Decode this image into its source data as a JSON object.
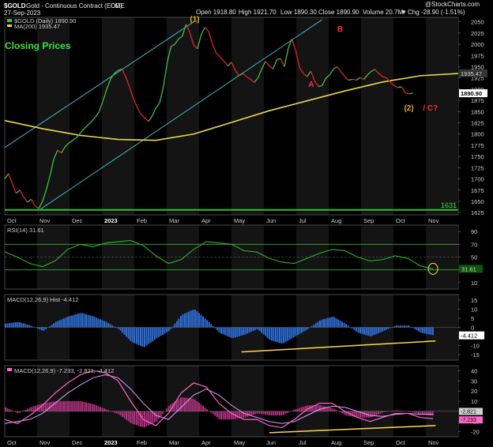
{
  "header": {
    "symbol": "$GOLD",
    "name": "Gold - Continuous Contract (EOD)",
    "exchange": "CME",
    "date": "27-Sep-2023",
    "quote": {
      "open": "Open 1918.80",
      "high": "High 1921.70",
      "low": "Low 1890.30",
      "close": "Close 1890.90",
      "volume": "Volume 20.7M",
      "change": "Chg -28.90 (-1.51%)",
      "change_arrow": "▼"
    },
    "watermark": "@StockCharts.com"
  },
  "colors": {
    "background": "#000000",
    "band": "#141414",
    "price_up": "#3ec23e",
    "price_down": "#e0261f",
    "ma200": "#e8d84a",
    "channel": "#3fb8c8",
    "support": "#29c429",
    "rsi": "#2db52d",
    "macd_hist": "#2d6fd6",
    "macd_line": "#ff66cc",
    "signal_line": "#d9a0ff",
    "annotation_yellow": "#ffd84a",
    "label_green": "#3be23b",
    "label_red": "#ff3030",
    "wave_gold": "#e0b020"
  },
  "chart_data": [
    {
      "type": "line",
      "panel": "price",
      "title": "Closing Prices",
      "legend": [
        "$GOLD (Daily) 1890.90",
        "MA(200) 1935.47"
      ],
      "x_ticks": [
        "Oct",
        "Nov",
        "Dec",
        "2023",
        "Feb",
        "Mar",
        "Apr",
        "May",
        "Jun",
        "Jul",
        "Aug",
        "Sep",
        "Oct",
        "Nov"
      ],
      "y_ticks": [
        1625,
        1650,
        1675,
        1700,
        1725,
        1750,
        1775,
        1800,
        1825,
        1850,
        1875,
        1900,
        1925,
        1950,
        1975,
        2000,
        2025,
        2050
      ],
      "ylim": [
        1620,
        2060
      ],
      "last_close_label": "1890.90",
      "ma_label": "1935.47",
      "support_label": "1631",
      "support_level": 1631,
      "annotations": [
        {
          "text": "(1)",
          "color": "wave_gold"
        },
        {
          "text": "B",
          "color": "label_red"
        },
        {
          "text": "A",
          "color": "label_red"
        },
        {
          "text": "(2)",
          "color": "wave_gold"
        },
        {
          "text": "/ C?",
          "color": "label_red"
        }
      ],
      "series": [
        {
          "name": "$GOLD (Daily) 1890.90",
          "x": [
            0,
            3,
            6,
            9,
            12,
            15,
            18,
            21,
            24,
            27,
            30,
            33,
            36,
            39,
            42,
            45,
            48,
            51,
            54,
            57,
            60,
            63,
            66,
            69,
            72,
            75,
            78,
            81,
            84,
            87,
            90,
            93,
            96,
            99,
            102,
            105,
            108,
            111,
            114,
            117,
            120,
            123,
            126,
            129,
            132,
            135,
            138,
            141,
            144,
            147,
            150,
            153,
            156,
            159,
            162,
            165,
            168,
            171,
            174,
            177,
            180,
            183,
            186,
            189,
            192,
            195,
            198,
            201,
            204,
            207,
            210,
            213,
            216,
            219,
            222,
            225,
            228,
            231,
            234,
            237,
            240,
            243,
            246,
            249,
            252,
            255,
            258,
            261,
            264,
            267,
            270,
            273,
            276,
            279,
            282,
            285,
            288,
            291,
            294,
            297,
            300,
            303,
            306,
            309,
            312,
            315,
            318,
            321,
            324,
            327,
            330,
            333,
            336,
            339,
            342,
            345,
            348,
            351,
            354,
            357,
            360
          ],
          "values": [
            1700,
            1712,
            1690,
            1668,
            1675,
            1660,
            1648,
            1655,
            1640,
            1634,
            1650,
            1676,
            1708,
            1745,
            1764,
            1758,
            1772,
            1780,
            1786,
            1792,
            1802,
            1812,
            1820,
            1828,
            1838,
            1850,
            1874,
            1900,
            1922,
            1935,
            1942,
            1945,
            1928,
            1905,
            1880,
            1860,
            1845,
            1836,
            1828,
            1840,
            1858,
            1870,
            1905,
            1960,
            1995,
            2000,
            2012,
            2018,
            2045,
            2026,
            1998,
            1990,
            2022,
            2038,
            2028,
            2000,
            1980,
            1972,
            1962,
            1952,
            1960,
            1942,
            1930,
            1935,
            1928,
            1922,
            1915,
            1925,
            1945,
            1962,
            1952,
            1945,
            1966,
            1968,
            1950,
            1990,
            2012,
            1986,
            1948,
            1935,
            1928,
            1940,
            1918,
            1906,
            1908,
            1925,
            1932,
            1945,
            1950,
            1938,
            1928,
            1920,
            1922,
            1920,
            1926,
            1922,
            1932,
            1940,
            1944,
            1935,
            1928,
            1925,
            1916,
            1908,
            1904,
            1905,
            1892,
            1890,
            1891,
            1891,
            1891,
            1891,
            1891,
            1891,
            1891,
            1891,
            1891,
            1891,
            1891,
            1891,
            1891
          ]
        },
        {
          "name": "MA(200) 1935.47",
          "x": [
            0,
            30,
            60,
            90,
            120,
            150,
            180,
            210,
            240,
            270,
            300,
            330,
            360
          ],
          "values": [
            1830,
            1812,
            1797,
            1788,
            1786,
            1800,
            1826,
            1852,
            1874,
            1896,
            1916,
            1930,
            1935
          ]
        }
      ]
    },
    {
      "type": "line",
      "panel": "rsi",
      "legend": [
        "RSI(14) 31.61"
      ],
      "y_ticks": [
        10,
        30,
        50,
        70,
        90
      ],
      "ylim": [
        0,
        100
      ],
      "last_label": "31.61",
      "series": [
        {
          "name": "RSI(14) 31.61",
          "x": [
            0,
            10,
            20,
            30,
            40,
            50,
            60,
            70,
            80,
            90,
            100,
            110,
            120,
            130,
            140,
            150,
            160,
            170,
            180,
            190,
            200,
            210,
            220,
            230,
            240,
            250,
            260,
            270,
            280,
            290,
            300,
            310,
            320,
            330,
            340,
            350,
            360
          ],
          "values": [
            58,
            50,
            40,
            35,
            44,
            62,
            70,
            66,
            72,
            74,
            76,
            68,
            52,
            40,
            46,
            62,
            74,
            72,
            70,
            60,
            58,
            48,
            42,
            40,
            48,
            56,
            62,
            60,
            50,
            44,
            46,
            52,
            48,
            36,
            31.6,
            31.6,
            31.6
          ]
        }
      ]
    },
    {
      "type": "bar",
      "panel": "macd_hist",
      "legend": [
        "MACD(12,26,9) Hist -4.412"
      ],
      "y_ticks": [
        -15,
        -10,
        -5,
        0,
        5,
        10,
        15
      ],
      "ylim": [
        -18,
        18
      ],
      "last_label": "-4.412",
      "series": [
        {
          "name": "MACD(12,26,9) Hist -4.412",
          "x": [
            0,
            10,
            20,
            30,
            40,
            50,
            60,
            70,
            80,
            90,
            100,
            110,
            120,
            130,
            140,
            150,
            160,
            170,
            180,
            190,
            200,
            210,
            220,
            230,
            240,
            250,
            260,
            270,
            280,
            290,
            300,
            310,
            320,
            330,
            340,
            350,
            360
          ],
          "values": [
            2,
            3,
            1,
            -2,
            3,
            6,
            8,
            6,
            3,
            -1,
            -8,
            -11,
            -6,
            -2,
            7,
            10,
            4,
            -3,
            -6,
            -4,
            -1,
            -7,
            -9,
            -5,
            -1,
            4,
            6,
            2,
            -3,
            -5,
            -2,
            1,
            1,
            -3,
            -4.4,
            -4.4,
            -4.4
          ]
        }
      ]
    },
    {
      "type": "line",
      "panel": "macd",
      "legend": [
        "MACD(12,26,9) -7.233, -2.821, -4.412"
      ],
      "y_ticks": [
        -20,
        -10,
        0,
        10,
        20,
        30,
        40
      ],
      "ylim": [
        -25,
        45
      ],
      "last_labels": [
        "-2.821",
        "-7.233"
      ],
      "series": [
        {
          "name": "MACD",
          "x": [
            0,
            10,
            20,
            30,
            40,
            50,
            60,
            70,
            80,
            90,
            100,
            110,
            120,
            130,
            140,
            150,
            160,
            170,
            180,
            190,
            200,
            210,
            220,
            230,
            240,
            250,
            260,
            270,
            280,
            290,
            300,
            310,
            320,
            330,
            340,
            350,
            360
          ],
          "values": [
            -8,
            -12,
            -4,
            6,
            18,
            28,
            36,
            40,
            38,
            30,
            10,
            -8,
            -14,
            -2,
            18,
            28,
            24,
            8,
            -2,
            -8,
            -8,
            -14,
            -16,
            -8,
            2,
            8,
            8,
            0,
            -6,
            -10,
            -6,
            -2,
            -2,
            -6,
            -7.2,
            -7.2,
            -7.2
          ]
        },
        {
          "name": "Signal",
          "x": [
            0,
            10,
            20,
            30,
            40,
            50,
            60,
            70,
            80,
            90,
            100,
            110,
            120,
            130,
            140,
            150,
            160,
            170,
            180,
            190,
            200,
            210,
            220,
            230,
            240,
            250,
            260,
            270,
            280,
            290,
            300,
            310,
            320,
            330,
            340,
            350,
            360
          ],
          "values": [
            -12,
            -10,
            -8,
            -2,
            8,
            18,
            26,
            33,
            36,
            33,
            22,
            8,
            -4,
            -8,
            4,
            16,
            22,
            16,
            6,
            -2,
            -6,
            -10,
            -12,
            -10,
            -4,
            2,
            5,
            4,
            0,
            -4,
            -5,
            -3,
            -2,
            -3,
            -2.8,
            -2.8,
            -2.8
          ]
        }
      ]
    }
  ]
}
